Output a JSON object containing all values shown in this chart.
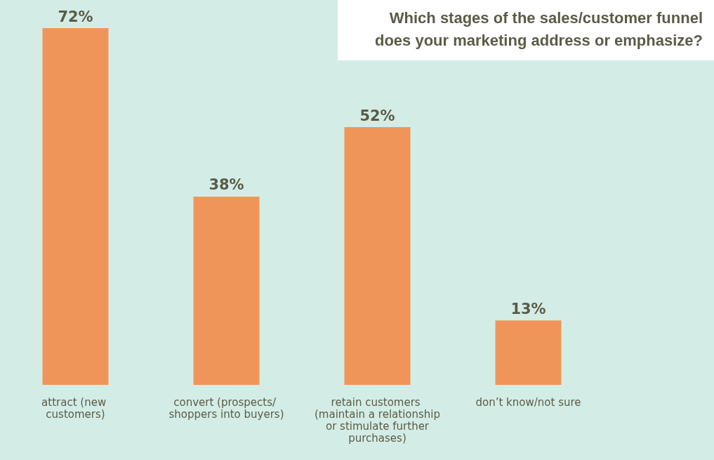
{
  "chart_data": {
    "type": "bar",
    "title": "Which stages of the sales/customer funnel does your marketing address or emphasize?",
    "categories": [
      "attract (new customers)",
      "convert (prospects/ shoppers into buyers)",
      "retain customers (maintain a relationship or stimulate further purchases)",
      "don’t know/not sure"
    ],
    "values": [
      72,
      38,
      52,
      13
    ],
    "value_labels": [
      "72%",
      "38%",
      "52%",
      "13%"
    ],
    "color": "#f0955a"
  }
}
